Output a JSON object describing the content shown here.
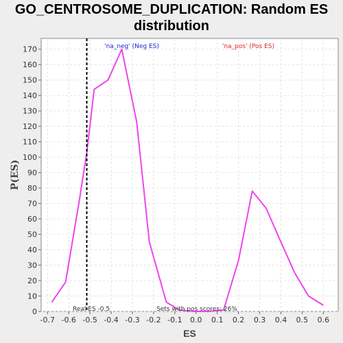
{
  "title_line1": "GO_CENTROSOME_DUPLICATION: Random ES",
  "title_line2": "distribution",
  "chart_data": {
    "type": "line",
    "xlabel": "ES",
    "ylabel": "P(ES)",
    "xlim": [
      -0.73,
      0.67
    ],
    "ylim": [
      0,
      177
    ],
    "xticks": [
      -0.7,
      -0.6,
      -0.5,
      -0.4,
      -0.3,
      -0.2,
      -0.1,
      0.0,
      0.1,
      0.2,
      0.3,
      0.4,
      0.5,
      0.6
    ],
    "yticks": [
      0,
      10,
      20,
      30,
      40,
      50,
      60,
      70,
      80,
      90,
      100,
      110,
      120,
      130,
      140,
      150,
      160,
      170
    ],
    "grid": true,
    "series": [
      {
        "color": "#ee44ee",
        "x": [
          -0.68,
          -0.615,
          -0.55,
          -0.515,
          -0.48,
          -0.415,
          -0.35,
          -0.28,
          -0.22,
          -0.14,
          -0.08,
          -0.01,
          0.06,
          0.13,
          0.2,
          0.265,
          0.33,
          0.4,
          0.465,
          0.53,
          0.6
        ],
        "y": [
          6,
          19,
          72,
          103,
          144,
          150,
          170,
          123,
          45,
          6,
          1,
          0,
          0,
          1,
          33,
          78,
          67,
          45,
          25,
          10,
          4
        ]
      }
    ],
    "real_es": -0.515,
    "legend": [
      {
        "text": "'na_neg' (Neg ES)",
        "color": "#2222cc"
      },
      {
        "text": "'na_pos' (Pos ES)",
        "color": "#dd2222"
      }
    ],
    "annotations": [
      {
        "text": "Real ES -0.5",
        "x": -0.55
      },
      {
        "text": "Sets with pos scores: 26%",
        "x": 0.0
      }
    ]
  }
}
